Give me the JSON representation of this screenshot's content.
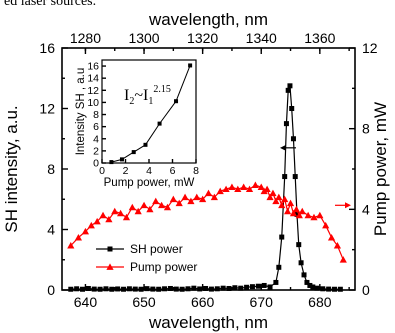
{
  "caption": "ed laser sources.",
  "chart_data": {
    "type": "line",
    "bottom_axis": {
      "label": "wavelength, nm",
      "range": [
        636,
        686
      ],
      "ticks": [
        640,
        650,
        660,
        670,
        680
      ]
    },
    "top_axis": {
      "label": "wavelength, nm",
      "range": [
        1272,
        1372
      ],
      "ticks": [
        1280,
        1300,
        1320,
        1340,
        1360
      ]
    },
    "left_axis": {
      "label": "SH intensity, a.u.",
      "range": [
        0,
        16
      ],
      "ticks": [
        0,
        4,
        8,
        12,
        16
      ]
    },
    "right_axis": {
      "label": "Pump power, mW",
      "range": [
        0,
        12
      ],
      "ticks": [
        0,
        4,
        8,
        12
      ]
    },
    "legend": {
      "position": "lower-left"
    },
    "series": [
      {
        "name": "SH power",
        "axis": "left",
        "color": "#000000",
        "marker": "square",
        "x": [
          637.5,
          638.5,
          639.5,
          640.5,
          641.5,
          642.5,
          643.5,
          644.5,
          645.5,
          646.5,
          647.5,
          648.5,
          649.5,
          650.5,
          651.5,
          652.5,
          653.5,
          654.5,
          655.5,
          656.5,
          657.5,
          658.5,
          659.5,
          660.5,
          661.5,
          662.5,
          663.5,
          664.5,
          665.5,
          666.5,
          667.5,
          668.5,
          669.5,
          670.5,
          671.5,
          672.5,
          673.0,
          673.5,
          674.0,
          674.3,
          674.6,
          674.9,
          675.2,
          675.5,
          675.8,
          676.1,
          676.4,
          676.8,
          677.3,
          677.8,
          678.3,
          678.8,
          679.5,
          680.5,
          681.5,
          682.5,
          683.5
        ],
        "y": [
          0.05,
          0.08,
          0.05,
          0.1,
          0.06,
          0.05,
          0.08,
          0.05,
          0.07,
          0.05,
          0.08,
          0.06,
          0.05,
          0.09,
          0.06,
          0.05,
          0.08,
          0.1,
          0.06,
          0.05,
          0.08,
          0.12,
          0.07,
          0.1,
          0.06,
          0.08,
          0.12,
          0.1,
          0.15,
          0.12,
          0.18,
          0.22,
          0.25,
          0.3,
          0.2,
          0.5,
          1.5,
          3.5,
          7.5,
          11.0,
          13.2,
          13.5,
          12.0,
          10.0,
          7.5,
          5.0,
          3.0,
          1.8,
          1.0,
          0.5,
          0.3,
          0.2,
          0.12,
          0.08,
          0.06,
          0.05,
          0.05
        ]
      },
      {
        "name": "Pump power",
        "axis": "right",
        "color": "#ff0000",
        "marker": "triangle",
        "x": [
          637.5,
          638.8,
          640.0,
          641.0,
          642.0,
          643.0,
          644.0,
          645.0,
          646.0,
          647.0,
          648.0,
          649.0,
          650.0,
          651.0,
          652.0,
          653.0,
          654.0,
          655.0,
          656.0,
          657.0,
          658.0,
          659.0,
          660.0,
          661.0,
          662.0,
          663.0,
          664.0,
          665.0,
          666.0,
          667.0,
          668.0,
          669.0,
          670.0,
          670.5,
          671.0,
          671.5,
          672.0,
          672.5,
          673.0,
          673.5,
          674.0,
          674.5,
          675.0,
          675.5,
          676.0,
          676.5,
          677.0,
          678.0,
          679.0,
          680.0,
          681.0,
          682.0,
          683.0,
          684.0
        ],
        "y": [
          2.2,
          2.6,
          2.9,
          3.2,
          3.4,
          3.7,
          3.5,
          3.9,
          3.8,
          3.6,
          4.1,
          3.9,
          4.2,
          4.0,
          4.4,
          4.2,
          4.1,
          4.5,
          4.3,
          4.6,
          4.4,
          4.6,
          4.5,
          4.8,
          4.6,
          4.9,
          5.0,
          5.1,
          5.0,
          5.1,
          5.0,
          5.2,
          5.1,
          4.9,
          5.0,
          4.6,
          4.8,
          4.4,
          4.6,
          4.2,
          4.5,
          3.9,
          4.3,
          3.8,
          4.0,
          3.7,
          3.9,
          3.7,
          3.6,
          3.7,
          3.2,
          2.6,
          2.2,
          1.5
        ]
      }
    ],
    "inset": {
      "type": "line",
      "xlabel": "Pump power, mW",
      "ylabel": "Intensity SH , a.u",
      "xlim": [
        0,
        8
      ],
      "ylim": [
        0,
        17
      ],
      "xticks": [
        0,
        2,
        4,
        6,
        8
      ],
      "yticks": [
        0,
        2,
        4,
        6,
        8,
        10,
        12,
        14,
        16
      ],
      "annotation_base": "I",
      "annotation_sub2": "2",
      "annotation_eq": "~I",
      "annotation_sub1": "1",
      "annotation_exp": "2.15",
      "x": [
        0.8,
        1.7,
        2.7,
        3.7,
        4.9,
        6.3,
        7.5
      ],
      "y": [
        0.15,
        0.6,
        1.8,
        3.0,
        6.5,
        10.2,
        16.1
      ]
    }
  }
}
